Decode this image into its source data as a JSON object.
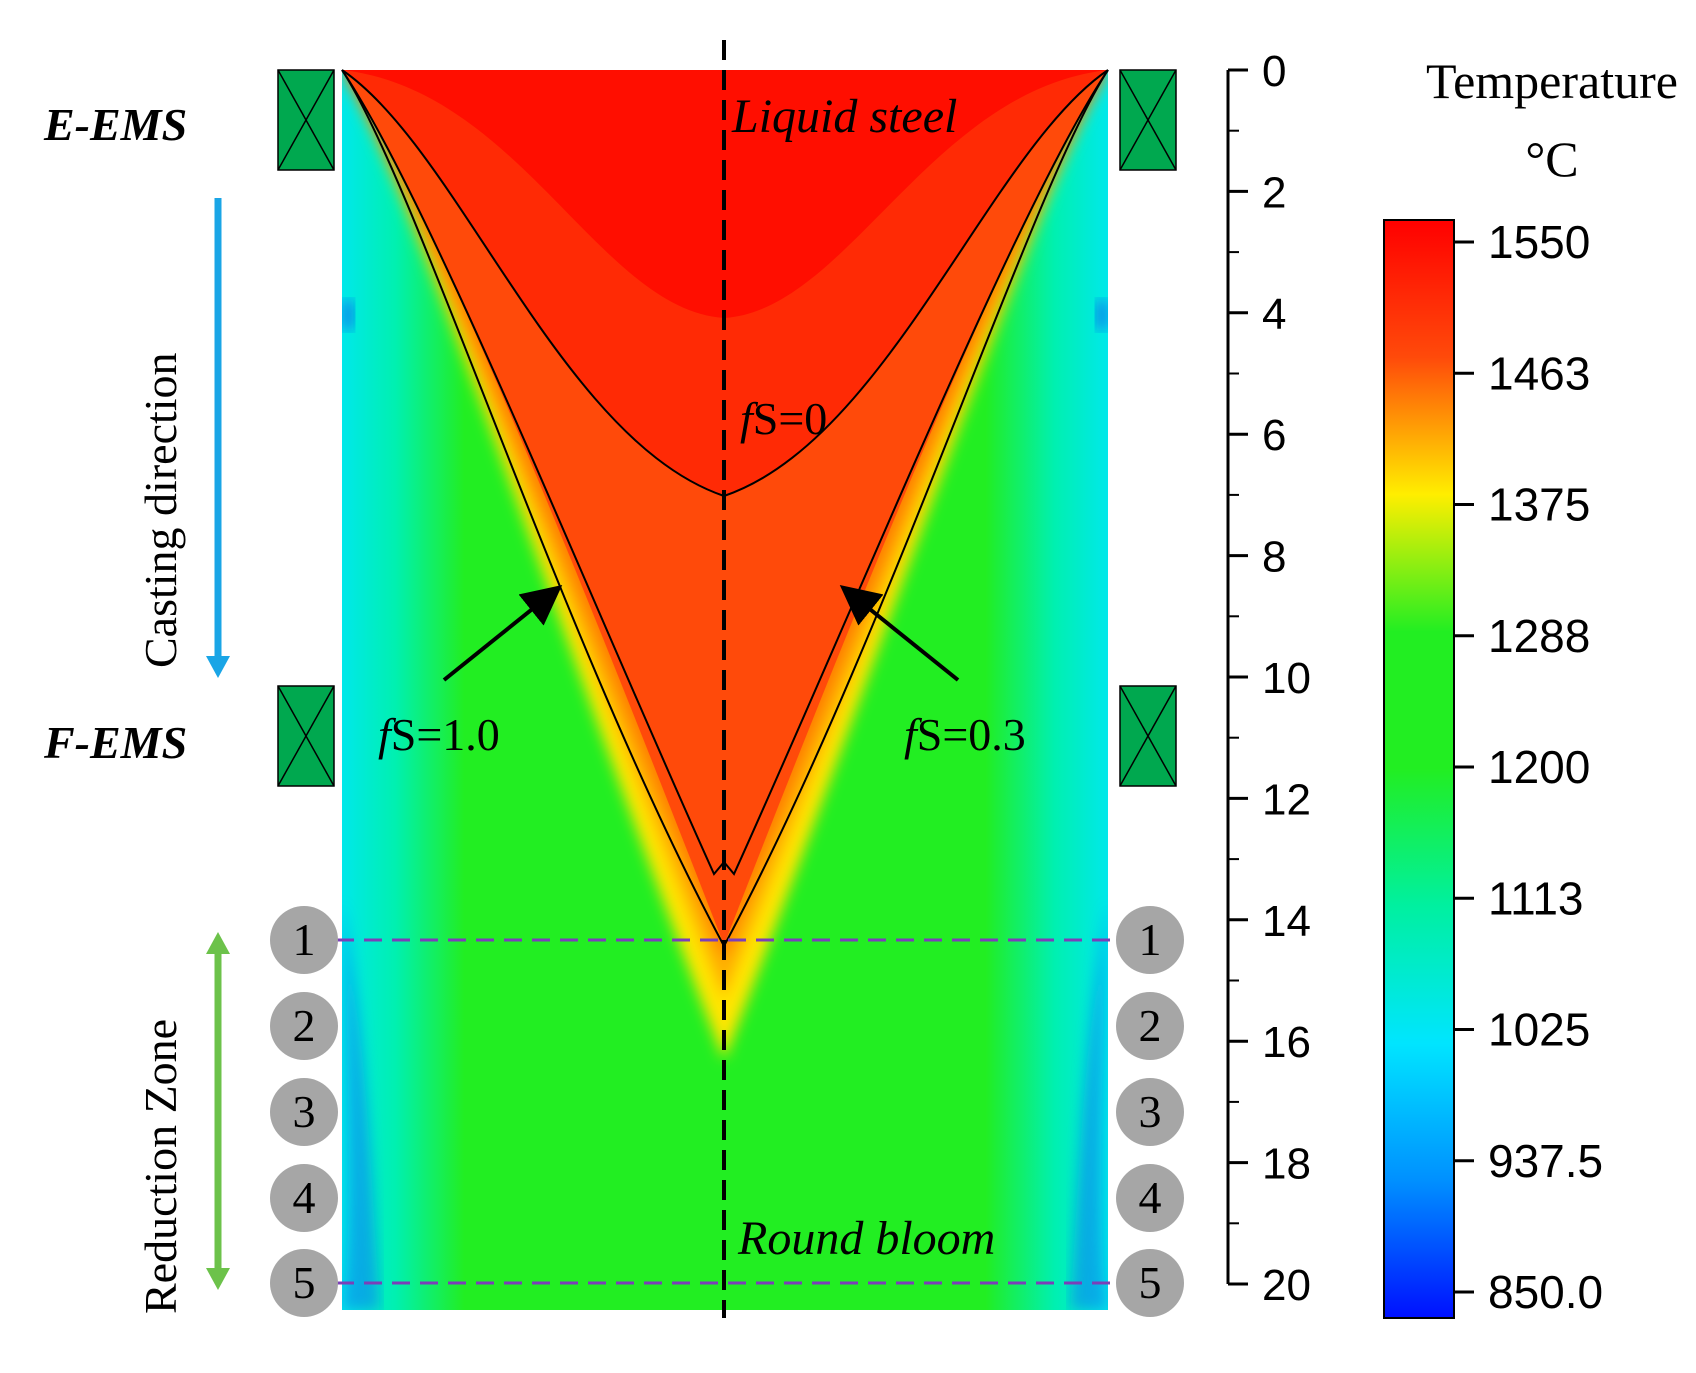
{
  "labels": {
    "e_ems": "E-EMS",
    "f_ems": "F-EMS",
    "casting_direction": "Casting direction",
    "reduction_zone": "Reduction Zone",
    "liquid_steel": "Liquid steel",
    "round_bloom": "Round bloom",
    "fs_prefix": "f",
    "fs0": "S=0",
    "fs10": "S=1.0",
    "fs03": "S=0.3"
  },
  "rollers": [
    "1",
    "2",
    "3",
    "4",
    "5"
  ],
  "depth_axis": {
    "ticks": [
      "0",
      "2",
      "4",
      "6",
      "8",
      "10",
      "12",
      "14",
      "16",
      "18",
      "20"
    ]
  },
  "colorbar": {
    "title": "Temperature",
    "unit": "°C",
    "ticks": [
      "1550",
      "1463",
      "1375",
      "1288",
      "1200",
      "1113",
      "1025",
      "937.5",
      "850.0"
    ]
  },
  "colors": {
    "ems_box": "#00a84f",
    "casting_arrow": "#1aa5e6",
    "reduction_arrow": "#6cc24a",
    "dashed_line": "#7b3fb8",
    "roller": "#a6a6a6",
    "liquid": "#ff1400",
    "mushy": "#ff4a0a",
    "green": "#22ee22",
    "cyan": "#00e5e5",
    "blue": "#0a3cf0"
  }
}
